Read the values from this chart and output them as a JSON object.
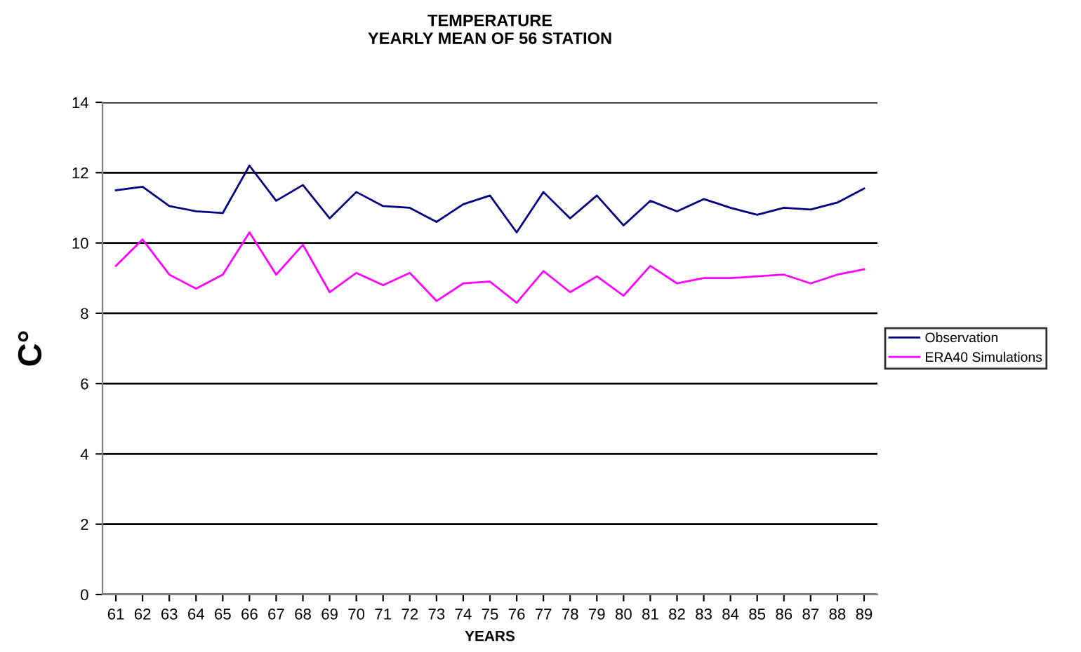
{
  "chart_data": {
    "type": "line",
    "title": "TEMPERATURE\nYEARLY MEAN OF 56 STATION",
    "xlabel": "YEARS",
    "ylabel": "C°",
    "categories": [
      "61",
      "62",
      "63",
      "64",
      "65",
      "66",
      "67",
      "68",
      "69",
      "70",
      "71",
      "72",
      "73",
      "74",
      "75",
      "76",
      "77",
      "78",
      "79",
      "80",
      "81",
      "82",
      "83",
      "84",
      "85",
      "86",
      "87",
      "88",
      "89"
    ],
    "series": [
      {
        "name": "Observation",
        "color": "#000080",
        "values": [
          11.5,
          11.6,
          11.05,
          10.9,
          10.85,
          12.2,
          11.2,
          11.65,
          10.7,
          11.45,
          11.05,
          11.0,
          10.6,
          11.1,
          11.35,
          10.3,
          11.45,
          10.7,
          11.35,
          10.5,
          11.2,
          10.9,
          11.25,
          11.0,
          10.8,
          11.0,
          10.95,
          11.15,
          11.55
        ]
      },
      {
        "name": "ERA40 Simulations",
        "color": "#ff00ff",
        "values": [
          9.35,
          10.1,
          9.1,
          8.7,
          9.1,
          10.3,
          9.1,
          9.95,
          8.6,
          9.15,
          8.8,
          9.15,
          8.35,
          8.85,
          8.9,
          8.3,
          9.2,
          8.6,
          9.05,
          8.5,
          9.35,
          8.85,
          9.0,
          9.0,
          9.05,
          9.1,
          8.85,
          9.1,
          9.25
        ]
      }
    ],
    "ylim": [
      0,
      14
    ],
    "yticks": [
      0,
      2,
      4,
      6,
      8,
      10,
      12,
      14
    ],
    "grid": "y",
    "legend": "right",
    "marker": "none",
    "line_style": "solid"
  }
}
